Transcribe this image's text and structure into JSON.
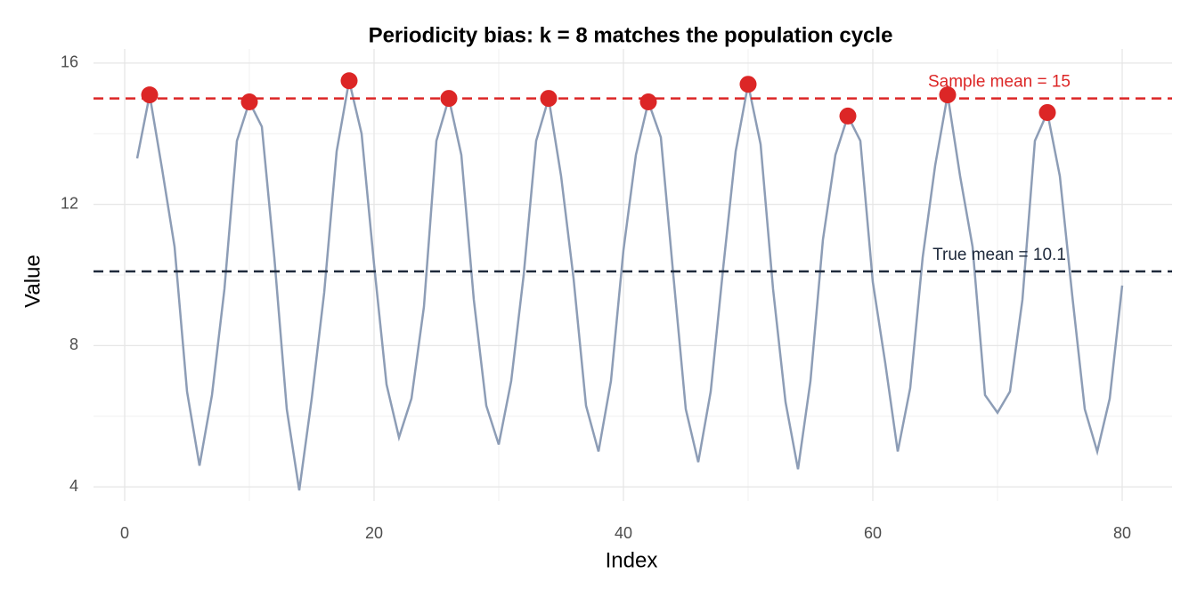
{
  "chart_data": {
    "type": "line",
    "title": "Periodicity bias: k = 8 matches the population cycle",
    "x_label": "Index",
    "y_label": "Value",
    "xlim": [
      -2.5,
      84
    ],
    "ylim": [
      3.6,
      16.4
    ],
    "xticks": [
      0,
      20,
      40,
      60,
      80
    ],
    "yticks": [
      4,
      8,
      12,
      16
    ],
    "grid": true,
    "series": [
      {
        "type": "line",
        "color": "#8d9db6",
        "x": [
          1,
          2,
          3,
          4,
          5,
          6,
          7,
          8,
          9,
          10,
          11,
          12,
          13,
          14,
          15,
          16,
          17,
          18,
          19,
          20,
          21,
          22,
          23,
          24,
          25,
          26,
          27,
          28,
          29,
          30,
          31,
          32,
          33,
          34,
          35,
          36,
          37,
          38,
          39,
          40,
          41,
          42,
          43,
          44,
          45,
          46,
          47,
          48,
          49,
          50,
          51,
          52,
          53,
          54,
          55,
          56,
          57,
          58,
          59,
          60,
          61,
          62,
          63,
          64,
          65,
          66,
          67,
          68,
          69,
          70,
          71,
          72,
          73,
          74,
          75,
          76,
          77,
          78,
          79,
          80
        ],
        "values": [
          13.3,
          15.1,
          13.0,
          10.8,
          6.7,
          4.6,
          6.6,
          9.6,
          13.8,
          14.9,
          14.2,
          10.5,
          6.2,
          3.9,
          6.5,
          9.5,
          13.5,
          15.5,
          14.0,
          10.3,
          6.9,
          5.4,
          6.5,
          9.1,
          13.8,
          15.0,
          13.4,
          9.3,
          6.3,
          5.2,
          7.0,
          10.0,
          13.8,
          15.0,
          12.8,
          9.9,
          6.3,
          5.0,
          7.0,
          10.7,
          13.4,
          14.9,
          13.9,
          10.0,
          6.2,
          4.7,
          6.7,
          10.2,
          13.5,
          15.4,
          13.7,
          9.6,
          6.4,
          4.5,
          7.0,
          11.0,
          13.4,
          14.5,
          13.8,
          9.8,
          7.5,
          5.0,
          6.8,
          10.5,
          13.1,
          15.1,
          12.8,
          10.8,
          6.6,
          6.1,
          6.7,
          9.3,
          13.8,
          14.6,
          12.8,
          9.4,
          6.2,
          5.0,
          6.5,
          9.7
        ]
      },
      {
        "type": "scatter",
        "color": "#dc2626",
        "x": [
          2,
          10,
          18,
          26,
          34,
          42,
          50,
          58,
          66,
          74
        ],
        "values": [
          15.1,
          14.9,
          15.5,
          15.0,
          15.0,
          14.9,
          15.4,
          14.5,
          15.1,
          14.6
        ]
      }
    ],
    "hlines": [
      {
        "value": 15,
        "label": "Sample mean = 15",
        "color": "#dc2626"
      },
      {
        "value": 10.1,
        "label": "True mean = 10.1",
        "color": "#1e293b"
      }
    ]
  }
}
